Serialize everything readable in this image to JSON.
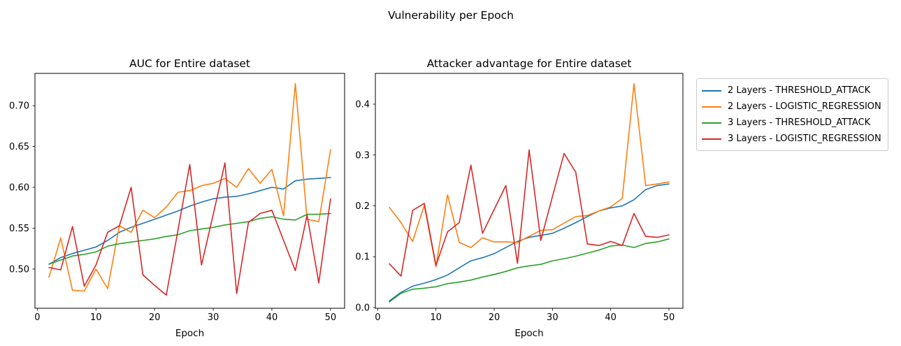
{
  "figure": {
    "suptitle": "Vulnerability per Epoch"
  },
  "colors": {
    "blue": "#1f77b4",
    "orange": "#ff7f0e",
    "green": "#2ca02c",
    "red": "#d62728",
    "axis": "#000000",
    "legend_border": "#cccccc"
  },
  "legend": {
    "items": [
      {
        "label": "2 Layers - THRESHOLD_ATTACK",
        "color": "blue"
      },
      {
        "label": "2 Layers - LOGISTIC_REGRESSION",
        "color": "orange"
      },
      {
        "label": "3 Layers - THRESHOLD_ATTACK",
        "color": "green"
      },
      {
        "label": "3 Layers - LOGISTIC_REGRESSION",
        "color": "red"
      }
    ]
  },
  "chart_data": [
    {
      "type": "line",
      "title": "AUC for Entire dataset",
      "xlabel": "Epoch",
      "grid": false,
      "xlim": [
        -0.4,
        52.4
      ],
      "ylim": [
        0.452,
        0.7395
      ],
      "xticks": {
        "values": [
          0,
          10,
          20,
          30,
          40,
          50
        ],
        "labels": [
          "0",
          "10",
          "20",
          "30",
          "40",
          "50"
        ]
      },
      "yticks": {
        "values": [
          0.5,
          0.55,
          0.6,
          0.65,
          0.7
        ],
        "labels": [
          "0.50",
          "0.55",
          "0.60",
          "0.65",
          "0.70"
        ]
      },
      "x": [
        2,
        4,
        6,
        8,
        10,
        12,
        14,
        16,
        18,
        20,
        22,
        24,
        26,
        28,
        30,
        32,
        34,
        36,
        38,
        40,
        42,
        44,
        46,
        48,
        50
      ],
      "series": [
        {
          "name": "2 Layers - THRESHOLD_ATTACK",
          "color": "blue",
          "values": [
            0.506,
            0.514,
            0.519,
            0.523,
            0.527,
            0.535,
            0.545,
            0.551,
            0.556,
            0.561,
            0.566,
            0.571,
            0.577,
            0.582,
            0.586,
            0.588,
            0.589,
            0.592,
            0.596,
            0.6,
            0.598,
            0.608,
            0.61,
            0.611,
            0.612
          ]
        },
        {
          "name": "2 Layers - LOGISTIC_REGRESSION",
          "color": "orange",
          "values": [
            0.49,
            0.538,
            0.474,
            0.473,
            0.5,
            0.476,
            0.553,
            0.545,
            0.572,
            0.563,
            0.576,
            0.594,
            0.596,
            0.602,
            0.605,
            0.611,
            0.6,
            0.623,
            0.605,
            0.622,
            0.565,
            0.727,
            0.561,
            0.558,
            0.646
          ]
        },
        {
          "name": "3 Layers - THRESHOLD_ATTACK",
          "color": "green",
          "values": [
            0.506,
            0.511,
            0.516,
            0.518,
            0.521,
            0.528,
            0.531,
            0.533,
            0.535,
            0.537,
            0.54,
            0.542,
            0.547,
            0.549,
            0.551,
            0.554,
            0.556,
            0.558,
            0.562,
            0.564,
            0.561,
            0.56,
            0.567,
            0.567,
            0.568
          ]
        },
        {
          "name": "3 Layers - LOGISTIC_REGRESSION",
          "color": "red",
          "values": [
            0.502,
            0.499,
            0.552,
            0.479,
            0.505,
            0.545,
            0.553,
            0.6,
            0.493,
            0.48,
            0.468,
            0.548,
            0.628,
            0.505,
            0.567,
            0.63,
            0.47,
            0.557,
            0.568,
            0.572,
            0.535,
            0.498,
            0.566,
            0.483,
            0.586
          ]
        }
      ]
    },
    {
      "type": "line",
      "title": "Attacker advantage for Entire dataset",
      "xlabel": "Epoch",
      "grid": false,
      "xlim": [
        -0.4,
        52.4
      ],
      "ylim": [
        -0.0014,
        0.4605
      ],
      "xticks": {
        "values": [
          0,
          10,
          20,
          30,
          40,
          50
        ],
        "labels": [
          "0",
          "10",
          "20",
          "30",
          "40",
          "50"
        ]
      },
      "yticks": {
        "values": [
          0.0,
          0.1,
          0.2,
          0.3,
          0.4
        ],
        "labels": [
          "0.0",
          "0.1",
          "0.2",
          "0.3",
          "0.4"
        ]
      },
      "x": [
        2,
        4,
        6,
        8,
        10,
        12,
        14,
        16,
        18,
        20,
        22,
        24,
        26,
        28,
        30,
        32,
        34,
        36,
        38,
        40,
        42,
        44,
        46,
        48,
        50
      ],
      "series": [
        {
          "name": "2 Layers - THRESHOLD_ATTACK",
          "color": "blue",
          "values": [
            0.013,
            0.03,
            0.042,
            0.048,
            0.055,
            0.064,
            0.078,
            0.092,
            0.098,
            0.106,
            0.118,
            0.13,
            0.138,
            0.142,
            0.146,
            0.156,
            0.167,
            0.179,
            0.19,
            0.196,
            0.2,
            0.212,
            0.232,
            0.24,
            0.243
          ]
        },
        {
          "name": "2 Layers - LOGISTIC_REGRESSION",
          "color": "orange",
          "values": [
            0.197,
            0.167,
            0.13,
            0.201,
            0.08,
            0.222,
            0.128,
            0.118,
            0.137,
            0.129,
            0.129,
            0.128,
            0.14,
            0.152,
            0.153,
            0.166,
            0.179,
            0.181,
            0.19,
            0.198,
            0.215,
            0.44,
            0.24,
            0.243,
            0.247
          ]
        },
        {
          "name": "3 Layers - THRESHOLD_ATTACK",
          "color": "green",
          "values": [
            0.011,
            0.028,
            0.036,
            0.038,
            0.041,
            0.047,
            0.05,
            0.054,
            0.06,
            0.065,
            0.071,
            0.078,
            0.082,
            0.085,
            0.092,
            0.096,
            0.101,
            0.107,
            0.113,
            0.121,
            0.123,
            0.118,
            0.126,
            0.129,
            0.135
          ]
        },
        {
          "name": "3 Layers - LOGISTIC_REGRESSION",
          "color": "red",
          "values": [
            0.086,
            0.062,
            0.191,
            0.205,
            0.083,
            0.149,
            0.167,
            0.28,
            0.146,
            0.193,
            0.24,
            0.087,
            0.31,
            0.132,
            0.218,
            0.303,
            0.266,
            0.125,
            0.122,
            0.13,
            0.122,
            0.185,
            0.14,
            0.138,
            0.143
          ]
        }
      ]
    }
  ]
}
